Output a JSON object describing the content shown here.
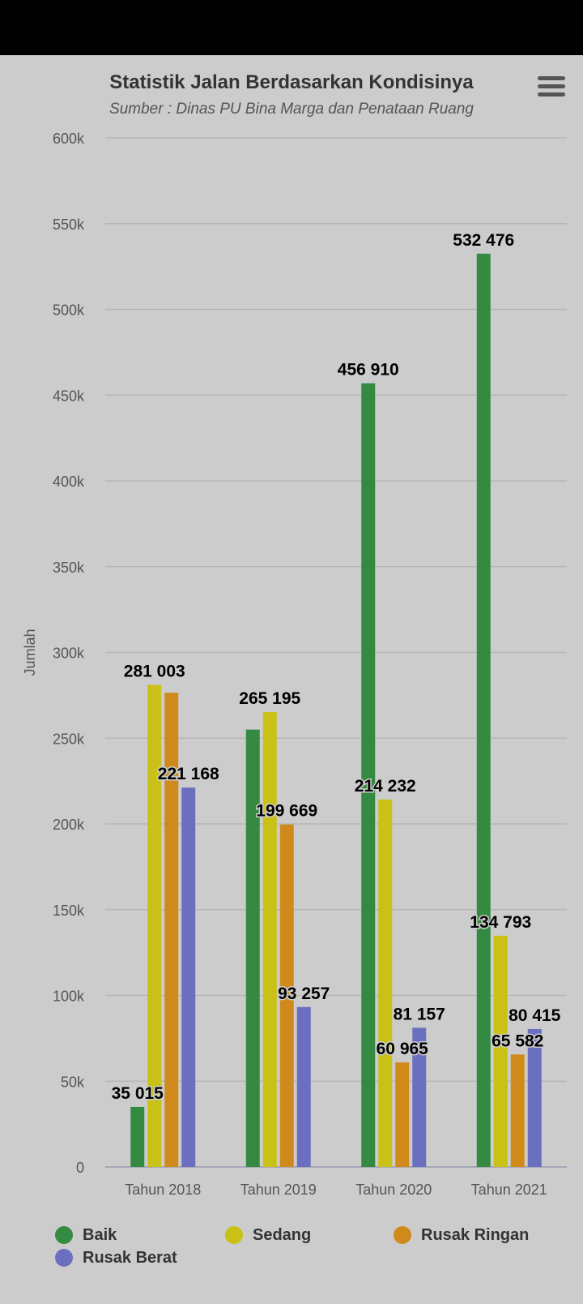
{
  "header": {
    "title": "Statistik Jalan Berdasarkan Kondisinya",
    "subtitle": "Sumber : Dinas PU Bina Marga dan Penataan Ruang",
    "menu_icon": "hamburger-menu-icon"
  },
  "colors": {
    "background": "#cccccc",
    "baik": "#358a42",
    "sedang": "#c9c116",
    "rusak_ringan": "#d08a1c",
    "rusak_berat": "#6a6fbf"
  },
  "chart_data": {
    "type": "bar",
    "title": "Statistik Jalan Berdasarkan Kondisinya",
    "subtitle": "Sumber : Dinas PU Bina Marga dan Penataan Ruang",
    "xlabel": "",
    "ylabel": "Jumlah",
    "ylim": [
      0,
      600000
    ],
    "yticks": [
      "0",
      "50k",
      "100k",
      "150k",
      "200k",
      "250k",
      "300k",
      "350k",
      "400k",
      "450k",
      "500k",
      "550k",
      "600k"
    ],
    "grid": true,
    "legend_position": "bottom",
    "categories": [
      "Tahun 2018",
      "Tahun 2019",
      "Tahun 2020",
      "Tahun 2021"
    ],
    "series": [
      {
        "name": "Baik",
        "color": "#358a42",
        "values": [
          35015,
          255000,
          456910,
          532476
        ],
        "labels": [
          "35 015",
          "",
          "456 910",
          "532 476"
        ]
      },
      {
        "name": "Sedang",
        "color": "#c9c116",
        "values": [
          281003,
          265195,
          214232,
          134793
        ],
        "labels": [
          "281 003",
          "265 195",
          "214 232",
          "134 793"
        ]
      },
      {
        "name": "Rusak Ringan",
        "color": "#d08a1c",
        "values": [
          276500,
          199669,
          60965,
          65582
        ],
        "labels": [
          "",
          "199 669",
          "60 965",
          "65 582"
        ]
      },
      {
        "name": "Rusak Berat",
        "color": "#6a6fbf",
        "values": [
          221168,
          93257,
          81157,
          80415
        ],
        "labels": [
          "221 168",
          "93 257",
          "81 157",
          "80 415"
        ]
      }
    ]
  }
}
